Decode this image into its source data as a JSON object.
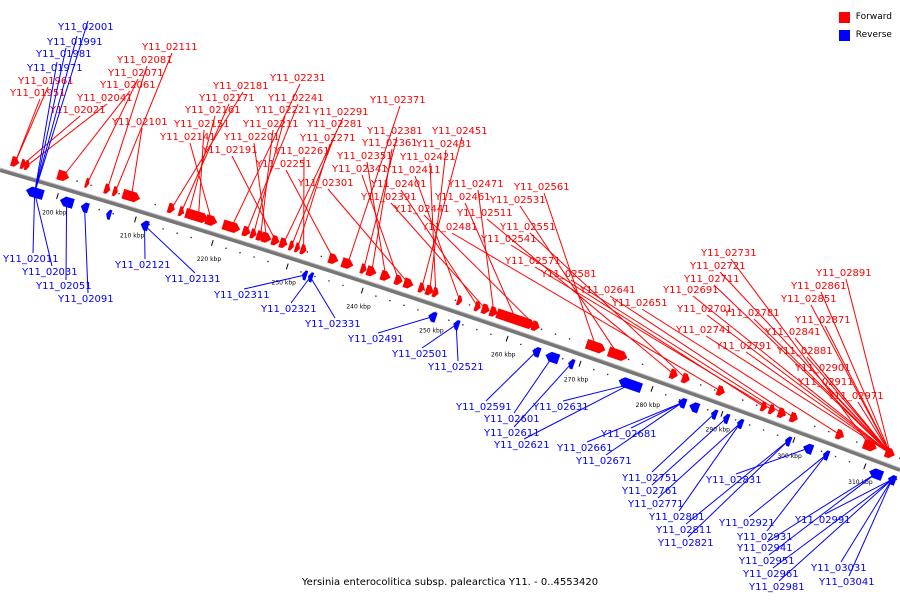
{
  "caption": "Yersinia enterocolitica subsp. palearctica Y11. - 0..4553420",
  "legend": [
    {
      "label": "Forward",
      "color": "#ff0000"
    },
    {
      "label": "Reverse",
      "color": "#0000ff"
    }
  ],
  "colors": {
    "forward": "#ff0000",
    "reverse": "#0000ff",
    "backbone": "#777777"
  },
  "ticks": [
    "200 kbp",
    "210 kbp",
    "220 kbp",
    "230 kbp",
    "240 kbp",
    "250 kbp",
    "260 kbp",
    "270 kbp",
    "280 kbp",
    "290 kbp",
    "300 kbp",
    "310 kbp"
  ],
  "forward_labels": [
    "Y11_02111",
    "Y11_02081",
    "Y11_02071",
    "Y11_02061",
    "Y11_02041",
    "Y11_02021",
    "Y11_02101",
    "Y11_02181",
    "Y11_02171",
    "Y11_02161",
    "Y11_02151",
    "Y11_02141",
    "Y11_02231",
    "Y11_02241",
    "Y11_02221",
    "Y11_02211",
    "Y11_02201",
    "Y11_02191",
    "Y11_02291",
    "Y11_02281",
    "Y11_02271",
    "Y11_02261",
    "Y11_02251",
    "Y11_02371",
    "Y11_02381",
    "Y11_02361",
    "Y11_02351",
    "Y11_02341",
    "Y11_02301",
    "Y11_02451",
    "Y11_02431",
    "Y11_02421",
    "Y11_02411",
    "Y11_02401",
    "Y11_02391",
    "Y11_02471",
    "Y11_02461",
    "Y11_02441",
    "Y11_02561",
    "Y11_02531",
    "Y11_02511",
    "Y11_02551",
    "Y11_02481",
    "Y11_02541",
    "Y11_02571",
    "Y11_02581",
    "Y11_02641",
    "Y11_02651",
    "Y11_02731",
    "Y11_02721",
    "Y11_02711",
    "Y11_02691",
    "Y11_02701",
    "Y11_02741",
    "Y11_02781",
    "Y11_02791",
    "Y11_02891",
    "Y11_02861",
    "Y11_02851",
    "Y11_02871",
    "Y11_02841",
    "Y11_02881",
    "Y11_02901",
    "Y11_02911",
    "Y11_02971",
    "Y11_01961",
    "Y11_01951"
  ],
  "reverse_labels": [
    "Y11_02001",
    "Y11_01991",
    "Y11_01981",
    "Y11_01971",
    "Y11_02011",
    "Y11_02031",
    "Y11_02051",
    "Y11_02091",
    "Y11_02121",
    "Y11_02131",
    "Y11_02311",
    "Y11_02321",
    "Y11_02331",
    "Y11_02491",
    "Y11_02501",
    "Y11_02521",
    "Y11_02591",
    "Y11_02601",
    "Y11_02611",
    "Y11_02621",
    "Y11_02631",
    "Y11_02661",
    "Y11_02671",
    "Y11_02681",
    "Y11_02751",
    "Y11_02761",
    "Y11_02771",
    "Y11_02801",
    "Y11_02811",
    "Y11_02821",
    "Y11_02831",
    "Y11_02921",
    "Y11_02931",
    "Y11_02941",
    "Y11_02951",
    "Y11_02961",
    "Y11_02981",
    "Y11_02991",
    "Y11_03031",
    "Y11_03041"
  ]
}
